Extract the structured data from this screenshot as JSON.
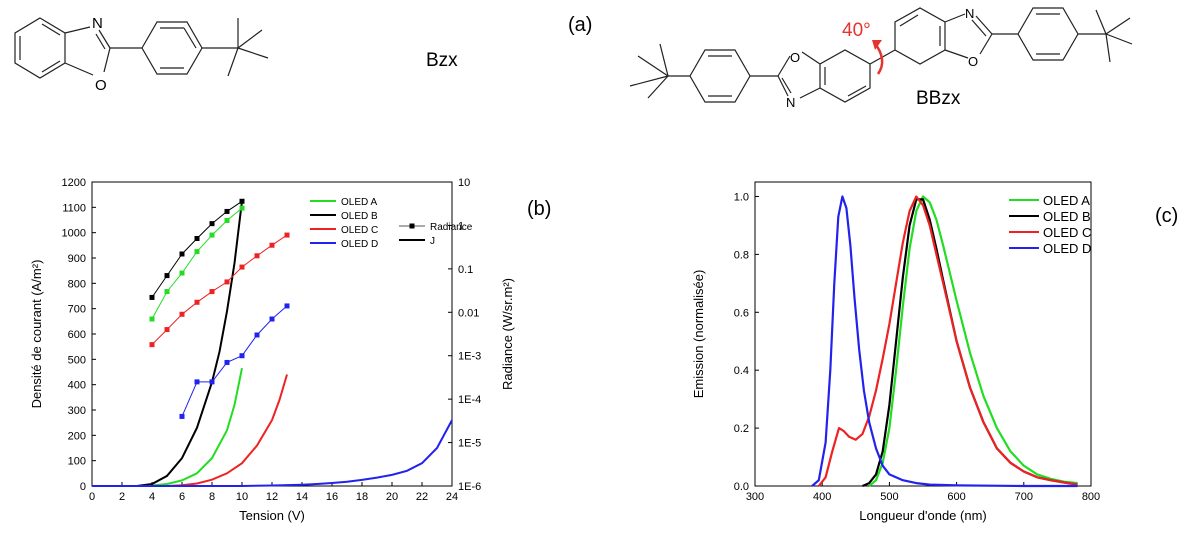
{
  "molecules": {
    "left_name": "Bzx",
    "right_name": "BBzx",
    "angle_label": "40°",
    "atom_N": "N",
    "atom_O": "O",
    "angle_color": "#e8322e"
  },
  "panel_labels": {
    "a": "(a)",
    "b": "(b)",
    "c": "(c)"
  },
  "chart_data": [
    {
      "type": "line",
      "xlabel": "Tension (V)",
      "ylabel": "Densité de courant (A/m²)",
      "ylabel_right": "Radiance (W/sr.m²)",
      "xlim": [
        0,
        24
      ],
      "ylim": [
        0,
        1200
      ],
      "ylim_right_log": [
        1e-06,
        10
      ],
      "x_ticks": [
        "0",
        "2",
        "4",
        "6",
        "8",
        "10",
        "12",
        "14",
        "16",
        "18",
        "20",
        "22",
        "24"
      ],
      "y_ticks": [
        "0",
        "100",
        "200",
        "300",
        "400",
        "500",
        "600",
        "700",
        "800",
        "900",
        "1000",
        "1100",
        "1200"
      ],
      "y_right_ticks": [
        "1E-6",
        "1E-5",
        "1E-4",
        "1E-3",
        "0.01",
        "0.1",
        "1",
        "10"
      ],
      "legend": {
        "position": "top-right",
        "entries": [
          "OLED A",
          "OLED B",
          "OLED C",
          "OLED D"
        ],
        "style_entries": [
          "Radiance",
          "J"
        ]
      },
      "colors": {
        "OLED A": "#22dd22",
        "OLED B": "#000000",
        "OLED C": "#ee2222",
        "OLED D": "#2222ee"
      },
      "series_J": [
        {
          "name": "OLED A",
          "x": [
            3,
            4,
            5,
            6,
            7,
            8,
            9,
            9.5,
            10
          ],
          "y": [
            0,
            2,
            8,
            22,
            50,
            110,
            220,
            320,
            465
          ]
        },
        {
          "name": "OLED B",
          "x": [
            3,
            4,
            5,
            6,
            7,
            8,
            8.5,
            9,
            9.5,
            10
          ],
          "y": [
            0,
            8,
            40,
            110,
            230,
            410,
            530,
            690,
            880,
            1125
          ]
        },
        {
          "name": "OLED C",
          "x": [
            5,
            6,
            7,
            8,
            9,
            10,
            11,
            12,
            12.5,
            13
          ],
          "y": [
            0,
            3,
            10,
            25,
            50,
            90,
            160,
            260,
            340,
            440
          ]
        },
        {
          "name": "OLED D",
          "x": [
            0,
            10,
            12,
            14,
            15,
            16,
            17,
            18,
            19,
            20,
            21,
            22,
            23,
            24
          ],
          "y": [
            0,
            0,
            2,
            5,
            8,
            12,
            17,
            24,
            33,
            44,
            60,
            90,
            150,
            260
          ]
        }
      ],
      "series_radiance": [
        {
          "name": "OLED A",
          "x": [
            4,
            5,
            6,
            7,
            8,
            9,
            10
          ],
          "y": [
            0.007,
            0.03,
            0.08,
            0.25,
            0.6,
            1.3,
            2.5
          ]
        },
        {
          "name": "OLED B",
          "x": [
            4,
            5,
            6,
            7,
            8,
            9,
            10
          ],
          "y": [
            0.022,
            0.07,
            0.22,
            0.5,
            1.1,
            2.1,
            3.6
          ]
        },
        {
          "name": "OLED C",
          "x": [
            4,
            5,
            6,
            7,
            8,
            9,
            10,
            11,
            12,
            13
          ],
          "y": [
            0.0018,
            0.004,
            0.009,
            0.017,
            0.03,
            0.05,
            0.11,
            0.2,
            0.35,
            0.6
          ]
        },
        {
          "name": "OLED D",
          "x": [
            6,
            7,
            8,
            9,
            10,
            11,
            12,
            13
          ],
          "y": [
            4e-05,
            0.00025,
            0.00025,
            0.0007,
            0.001,
            0.003,
            0.007,
            0.014
          ]
        }
      ]
    },
    {
      "type": "line",
      "xlabel": "Longueur d'onde (nm)",
      "ylabel": "Emission (normalisée)",
      "xlim": [
        300,
        800
      ],
      "ylim": [
        0,
        1.05
      ],
      "x_ticks": [
        "300",
        "400",
        "500",
        "600",
        "700",
        "800"
      ],
      "y_ticks": [
        "0.0",
        "0.2",
        "0.4",
        "0.6",
        "0.8",
        "1.0"
      ],
      "legend": {
        "position": "top-right",
        "entries": [
          "OLED A",
          "OLED B",
          "OLED C",
          "OLED D"
        ]
      },
      "colors": {
        "OLED A": "#22dd22",
        "OLED B": "#000000",
        "OLED C": "#ee2222",
        "OLED D": "#2222ee"
      },
      "series": [
        {
          "name": "OLED A",
          "x": [
            470,
            480,
            490,
            500,
            510,
            520,
            530,
            540,
            550,
            560,
            570,
            580,
            600,
            620,
            640,
            660,
            680,
            700,
            720,
            740,
            760,
            780
          ],
          "y": [
            0,
            0.02,
            0.08,
            0.2,
            0.4,
            0.62,
            0.82,
            0.95,
            1.0,
            0.98,
            0.92,
            0.83,
            0.64,
            0.46,
            0.31,
            0.2,
            0.12,
            0.07,
            0.04,
            0.025,
            0.015,
            0.01
          ]
        },
        {
          "name": "OLED B",
          "x": [
            460,
            470,
            480,
            490,
            500,
            510,
            520,
            530,
            540,
            550,
            560,
            570,
            580,
            600,
            620,
            640,
            660,
            680,
            700,
            720,
            740,
            760,
            780
          ],
          "y": [
            0,
            0.01,
            0.04,
            0.12,
            0.28,
            0.5,
            0.72,
            0.9,
            0.99,
            0.99,
            0.92,
            0.82,
            0.71,
            0.5,
            0.34,
            0.22,
            0.13,
            0.08,
            0.05,
            0.03,
            0.02,
            0.012,
            0.005
          ]
        },
        {
          "name": "OLED C",
          "x": [
            395,
            405,
            415,
            425,
            432,
            440,
            450,
            460,
            470,
            480,
            490,
            500,
            510,
            520,
            530,
            540,
            550,
            560,
            570,
            580,
            600,
            620,
            640,
            660,
            680,
            700,
            720,
            740,
            760,
            780
          ],
          "y": [
            0,
            0.03,
            0.12,
            0.2,
            0.19,
            0.17,
            0.16,
            0.18,
            0.24,
            0.33,
            0.44,
            0.56,
            0.7,
            0.84,
            0.95,
            1.0,
            0.97,
            0.9,
            0.8,
            0.7,
            0.5,
            0.34,
            0.22,
            0.13,
            0.08,
            0.05,
            0.03,
            0.02,
            0.012,
            0.005
          ]
        },
        {
          "name": "OLED D",
          "x": [
            385,
            395,
            405,
            412,
            418,
            424,
            430,
            436,
            442,
            448,
            455,
            462,
            470,
            480,
            490,
            500,
            520,
            540,
            560,
            600,
            650,
            700,
            780
          ],
          "y": [
            0,
            0.02,
            0.15,
            0.4,
            0.7,
            0.93,
            1.0,
            0.96,
            0.83,
            0.65,
            0.47,
            0.33,
            0.22,
            0.13,
            0.07,
            0.04,
            0.02,
            0.01,
            0.005,
            0.002,
            0.001,
            0,
            0
          ]
        }
      ]
    }
  ]
}
